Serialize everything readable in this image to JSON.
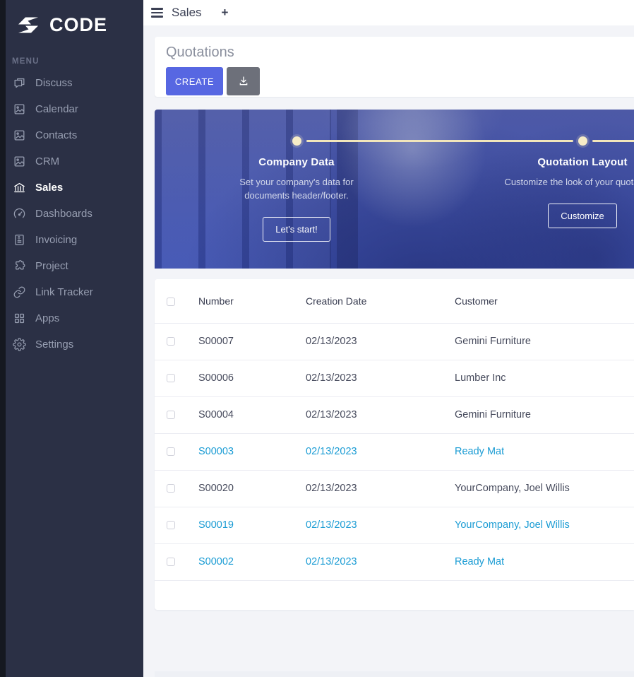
{
  "sidebar": {
    "logo_text": "CODE",
    "menu_label": "MENU",
    "items": [
      {
        "label": "Discuss",
        "icon": "chat",
        "active": false
      },
      {
        "label": "Calendar",
        "icon": "image",
        "active": false
      },
      {
        "label": "Contacts",
        "icon": "image",
        "active": false
      },
      {
        "label": "CRM",
        "icon": "image",
        "active": false
      },
      {
        "label": "Sales",
        "icon": "bank",
        "active": true
      },
      {
        "label": "Dashboards",
        "icon": "gauge",
        "active": false
      },
      {
        "label": "Invoicing",
        "icon": "invoice",
        "active": false
      },
      {
        "label": "Project",
        "icon": "puzzle",
        "active": false
      },
      {
        "label": "Link Tracker",
        "icon": "link",
        "active": false
      },
      {
        "label": "Apps",
        "icon": "grid",
        "active": false
      },
      {
        "label": "Settings",
        "icon": "gear",
        "active": false
      }
    ]
  },
  "topbar": {
    "title": "Sales",
    "plus_label": "+"
  },
  "page": {
    "title": "Quotations",
    "create_label": "CREATE"
  },
  "onboarding": {
    "steps": [
      {
        "title": "Company Data",
        "description": "Set your company's data for documents header/footer.",
        "button": "Let's start!"
      },
      {
        "title": "Quotation Layout",
        "description": "Customize the look of your quotations.",
        "button": "Customize"
      }
    ]
  },
  "table": {
    "columns": [
      "Number",
      "Creation Date",
      "Customer"
    ],
    "rows": [
      {
        "number": "S00007",
        "creation_date": "02/13/2023",
        "customer": "Gemini Furniture",
        "highlighted": false
      },
      {
        "number": "S00006",
        "creation_date": "02/13/2023",
        "customer": "Lumber Inc",
        "highlighted": false
      },
      {
        "number": "S00004",
        "creation_date": "02/13/2023",
        "customer": "Gemini Furniture",
        "highlighted": false
      },
      {
        "number": "S00003",
        "creation_date": "02/13/2023",
        "customer": "Ready Mat",
        "highlighted": true
      },
      {
        "number": "S00020",
        "creation_date": "02/13/2023",
        "customer": "YourCompany, Joel Willis",
        "highlighted": false
      },
      {
        "number": "S00019",
        "creation_date": "02/13/2023",
        "customer": "YourCompany, Joel Willis",
        "highlighted": true
      },
      {
        "number": "S00002",
        "creation_date": "02/13/2023",
        "customer": "Ready Mat",
        "highlighted": true
      }
    ]
  },
  "colors": {
    "sidebar_bg": "#2b3045",
    "accent_blue": "#5767e2",
    "link_blue": "#1b9cd4",
    "banner_blue": "#4254b0",
    "timeline_cream": "#f2e6bb"
  }
}
